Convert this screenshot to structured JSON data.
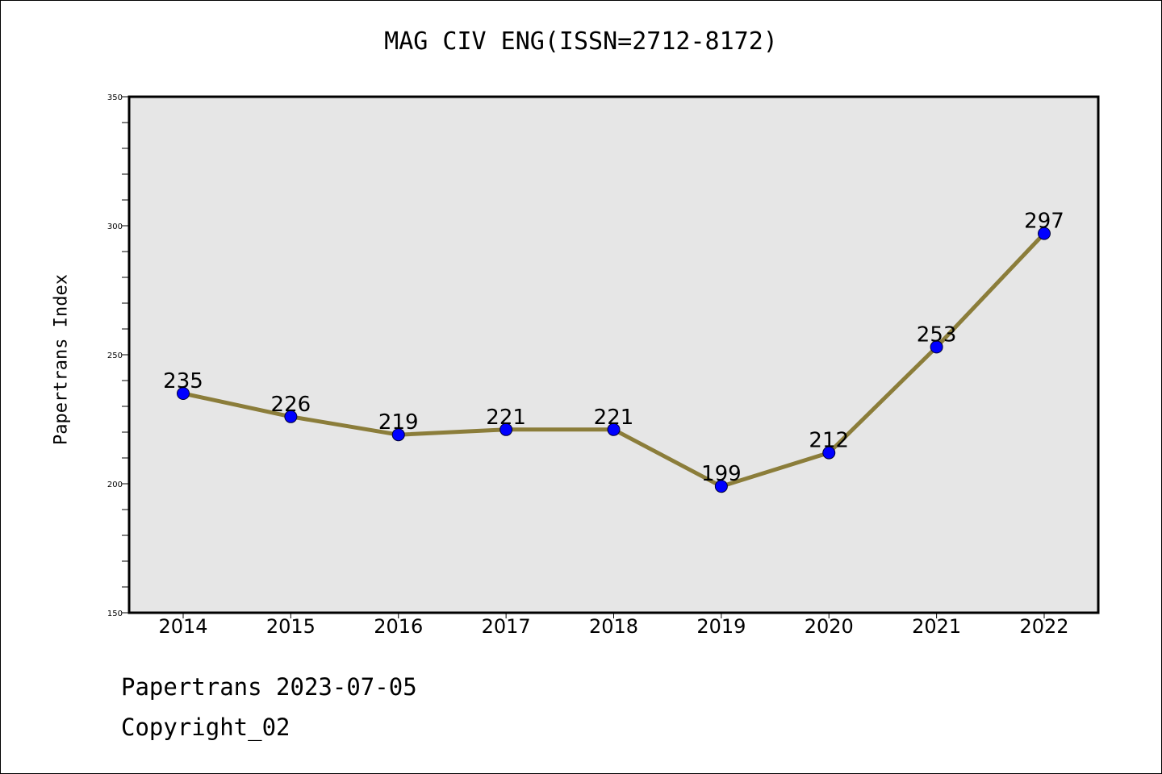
{
  "chart_data": {
    "type": "line",
    "title": "MAG CIV ENG(ISSN=2712-8172)",
    "xlabel": "",
    "ylabel": "Papertrans Index",
    "x": [
      "2014",
      "2015",
      "2016",
      "2017",
      "2018",
      "2019",
      "2020",
      "2021",
      "2022"
    ],
    "series": [
      {
        "values": [
          235,
          226,
          219,
          221,
          221,
          199,
          212,
          253,
          297
        ]
      }
    ],
    "data_labels": [
      "235",
      "226",
      "219",
      "221",
      "221",
      "199",
      "212",
      "253",
      "297"
    ],
    "ylim": [
      150,
      350
    ],
    "yticks": [
      150,
      200,
      250,
      300,
      350
    ],
    "grid": false,
    "colors": {
      "line": "#8b7d3a",
      "marker": "#0000ff",
      "plot_bg": "#e6e6e6"
    }
  },
  "footer": {
    "line1": "Papertrans 2023-07-05",
    "line2": "Copyright_02"
  }
}
